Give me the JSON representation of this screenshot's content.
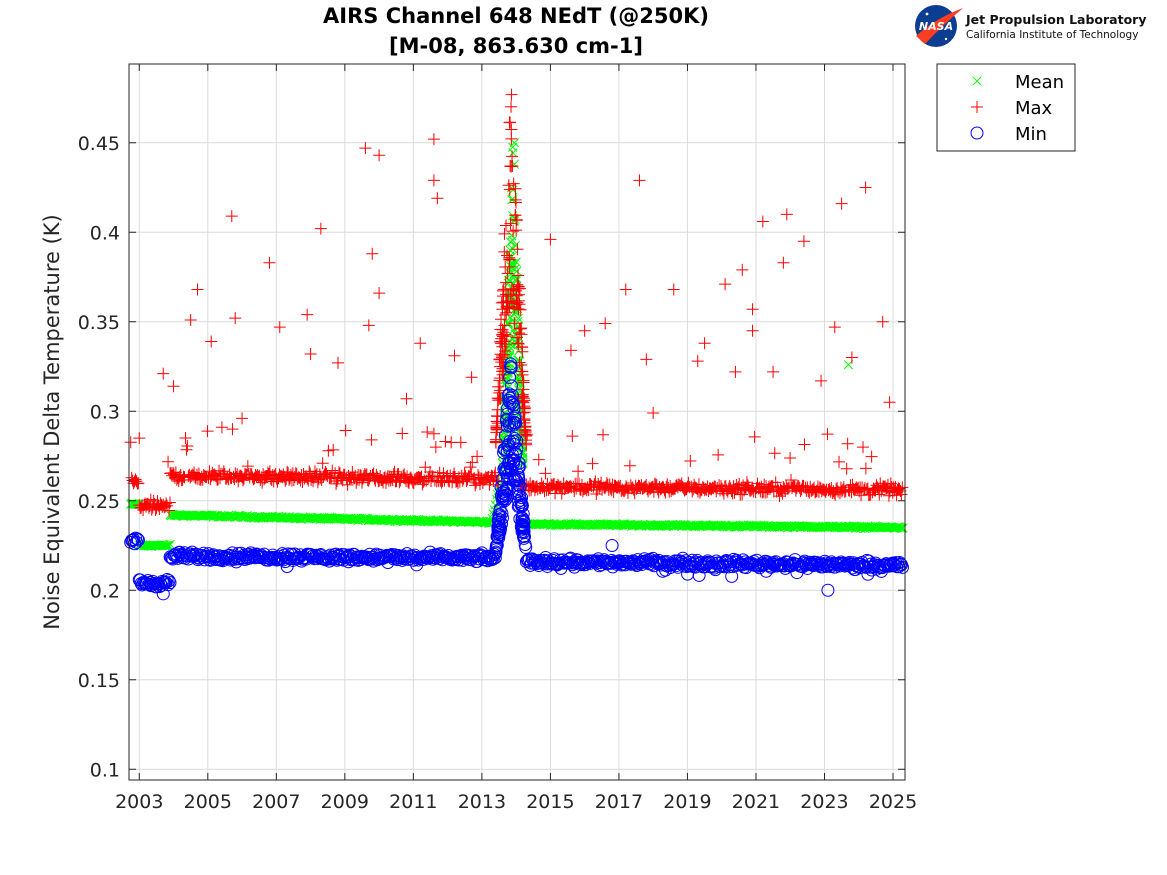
{
  "logo": {
    "agency": "NASA",
    "lab": "Jet Propulsion Laboratory",
    "institute": "California Institute of Technology"
  },
  "chart_data": {
    "type": "scatter",
    "title": "AIRS Channel 648 NEdT (@250K)",
    "subtitle": "[M-08, 863.630 cm-1]",
    "xlabel": "",
    "ylabel": "Noise Equivalent Delta Temperature (K)",
    "xlim": [
      2002.7,
      2025.35
    ],
    "ylim": [
      0.094,
      0.494
    ],
    "x_ticks": [
      2003,
      2005,
      2007,
      2009,
      2011,
      2013,
      2015,
      2017,
      2019,
      2021,
      2023,
      2025
    ],
    "x_tick_labels": [
      "2003",
      "2005",
      "2007",
      "2009",
      "2011",
      "2013",
      "2015",
      "2017",
      "2019",
      "2021",
      "2023",
      "2025"
    ],
    "y_ticks": [
      0.1,
      0.15,
      0.2,
      0.25,
      0.3,
      0.35,
      0.4,
      0.45
    ],
    "y_tick_labels": [
      "0.1",
      "0.15",
      "0.2",
      "0.25",
      "0.3",
      "0.35",
      "0.4",
      "0.45"
    ],
    "grid": true,
    "legend_position": "outside-top-right",
    "series": [
      {
        "name": "Mean",
        "marker": "x",
        "color": "#00ff00",
        "levels": [
          {
            "x": [
              2002.75,
              2003.0
            ],
            "y": 0.248
          },
          {
            "x": [
              2003.0,
              2003.9
            ],
            "y": 0.225
          },
          {
            "x": [
              2003.9,
              2013.3
            ],
            "y": [
              0.242,
              0.238
            ]
          },
          {
            "x": [
              2013.3,
              2014.1
            ],
            "y": [
              0.24,
              0.31
            ]
          },
          {
            "x": [
              2014.1,
              2025.3
            ],
            "y": [
              0.237,
              0.235
            ]
          }
        ],
        "spike": {
          "x": [
            2013.6,
            2014.2
          ],
          "y": [
            0.27,
            0.45
          ]
        },
        "outliers": [
          {
            "x": 2013.95,
            "y": 0.45
          },
          {
            "x": 2013.95,
            "y": 0.438
          },
          {
            "x": 2023.7,
            "y": 0.326
          }
        ]
      },
      {
        "name": "Max",
        "marker": "+",
        "color": "#ff0000",
        "levels": [
          {
            "x": [
              2002.75,
              2003.0
            ],
            "y": 0.26
          },
          {
            "x": [
              2003.0,
              2003.9
            ],
            "y": 0.247
          },
          {
            "x": [
              2003.9,
              2013.5
            ],
            "y": [
              0.264,
              0.262
            ]
          },
          {
            "x": [
              2014.1,
              2025.3
            ],
            "y": [
              0.258,
              0.256
            ]
          }
        ],
        "spike": {
          "x": [
            2013.4,
            2014.3
          ],
          "y": [
            0.28,
            0.49
          ]
        },
        "outliers": [
          {
            "x": 2004.7,
            "y": 0.368
          },
          {
            "x": 2004.5,
            "y": 0.351
          },
          {
            "x": 2005.1,
            "y": 0.339
          },
          {
            "x": 2005.7,
            "y": 0.409
          },
          {
            "x": 2005.8,
            "y": 0.352
          },
          {
            "x": 2006.8,
            "y": 0.383
          },
          {
            "x": 2007.1,
            "y": 0.347
          },
          {
            "x": 2007.9,
            "y": 0.354
          },
          {
            "x": 2008.3,
            "y": 0.402
          },
          {
            "x": 2008.0,
            "y": 0.332
          },
          {
            "x": 2009.6,
            "y": 0.447
          },
          {
            "x": 2010.0,
            "y": 0.443
          },
          {
            "x": 2009.8,
            "y": 0.388
          },
          {
            "x": 2010.0,
            "y": 0.366
          },
          {
            "x": 2009.7,
            "y": 0.348
          },
          {
            "x": 2011.6,
            "y": 0.452
          },
          {
            "x": 2011.6,
            "y": 0.429
          },
          {
            "x": 2011.7,
            "y": 0.419
          },
          {
            "x": 2012.2,
            "y": 0.331
          },
          {
            "x": 2011.2,
            "y": 0.338
          },
          {
            "x": 2015.0,
            "y": 0.396
          },
          {
            "x": 2016.0,
            "y": 0.345
          },
          {
            "x": 2016.6,
            "y": 0.349
          },
          {
            "x": 2017.2,
            "y": 0.368
          },
          {
            "x": 2017.6,
            "y": 0.429
          },
          {
            "x": 2017.8,
            "y": 0.329
          },
          {
            "x": 2018.6,
            "y": 0.368
          },
          {
            "x": 2019.5,
            "y": 0.338
          },
          {
            "x": 2020.1,
            "y": 0.371
          },
          {
            "x": 2020.6,
            "y": 0.379
          },
          {
            "x": 2020.9,
            "y": 0.357
          },
          {
            "x": 2020.9,
            "y": 0.345
          },
          {
            "x": 2021.2,
            "y": 0.406
          },
          {
            "x": 2021.5,
            "y": 0.322
          },
          {
            "x": 2021.9,
            "y": 0.41
          },
          {
            "x": 2021.8,
            "y": 0.383
          },
          {
            "x": 2022.4,
            "y": 0.395
          },
          {
            "x": 2023.3,
            "y": 0.347
          },
          {
            "x": 2023.5,
            "y": 0.416
          },
          {
            "x": 2023.8,
            "y": 0.33
          },
          {
            "x": 2024.2,
            "y": 0.425
          },
          {
            "x": 2024.7,
            "y": 0.35
          },
          {
            "x": 2003.0,
            "y": 0.285
          },
          {
            "x": 2003.7,
            "y": 0.321
          },
          {
            "x": 2004.0,
            "y": 0.314
          },
          {
            "x": 2006.0,
            "y": 0.296
          },
          {
            "x": 2008.8,
            "y": 0.327
          },
          {
            "x": 2010.8,
            "y": 0.307
          },
          {
            "x": 2012.7,
            "y": 0.319
          },
          {
            "x": 2015.6,
            "y": 0.334
          },
          {
            "x": 2018.0,
            "y": 0.299
          },
          {
            "x": 2019.3,
            "y": 0.328
          },
          {
            "x": 2020.4,
            "y": 0.322
          },
          {
            "x": 2022.9,
            "y": 0.317
          },
          {
            "x": 2024.9,
            "y": 0.305
          }
        ]
      },
      {
        "name": "Min",
        "marker": "o",
        "color": "#0000ff",
        "levels": [
          {
            "x": [
              2002.75,
              2003.0
            ],
            "y": 0.228
          },
          {
            "x": [
              2003.0,
              2003.9
            ],
            "y": 0.204
          },
          {
            "x": [
              2003.9,
              2013.4
            ],
            "y": [
              0.219,
              0.218
            ]
          },
          {
            "x": [
              2014.3,
              2025.3
            ],
            "y": [
              0.216,
              0.214
            ]
          }
        ],
        "spike": {
          "x": [
            2013.4,
            2014.3
          ],
          "y": [
            0.22,
            0.33
          ]
        },
        "outliers": [
          {
            "x": 2003.7,
            "y": 0.198
          },
          {
            "x": 2016.8,
            "y": 0.225
          },
          {
            "x": 2023.1,
            "y": 0.2
          }
        ]
      }
    ]
  }
}
